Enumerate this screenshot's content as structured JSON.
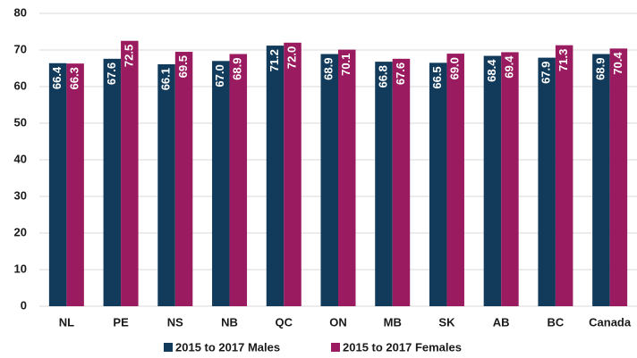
{
  "chart_data": {
    "type": "bar",
    "categories": [
      "NL",
      "PE",
      "NS",
      "NB",
      "QC",
      "ON",
      "MB",
      "SK",
      "AB",
      "BC",
      "Canada"
    ],
    "series": [
      {
        "name": "2015 to 2017 Males",
        "color": "#123b5b",
        "values": [
          66.4,
          67.6,
          66.1,
          67.0,
          71.2,
          68.9,
          66.8,
          66.5,
          68.4,
          67.9,
          68.9
        ],
        "value_labels": [
          "66.4",
          "67.6",
          "66.1",
          "67.0",
          "71.2",
          "68.9",
          "66.8",
          "66.5",
          "68.4",
          "67.9",
          "68.9"
        ]
      },
      {
        "name": "2015 to 2017 Females",
        "color": "#9a1b5f",
        "values": [
          66.3,
          72.5,
          69.5,
          68.9,
          72.0,
          70.1,
          67.6,
          69.0,
          69.4,
          71.3,
          70.4
        ],
        "value_labels": [
          "66.3",
          "72.5",
          "69.5",
          "68.9",
          "72.0",
          "70.1",
          "67.6",
          "69.0",
          "69.4",
          "71.3",
          "70.4"
        ]
      }
    ],
    "ylim": [
      0,
      80
    ],
    "yticks": [
      0,
      10,
      20,
      30,
      40,
      50,
      60,
      70,
      80
    ],
    "grid": true,
    "legend": "bottom"
  }
}
